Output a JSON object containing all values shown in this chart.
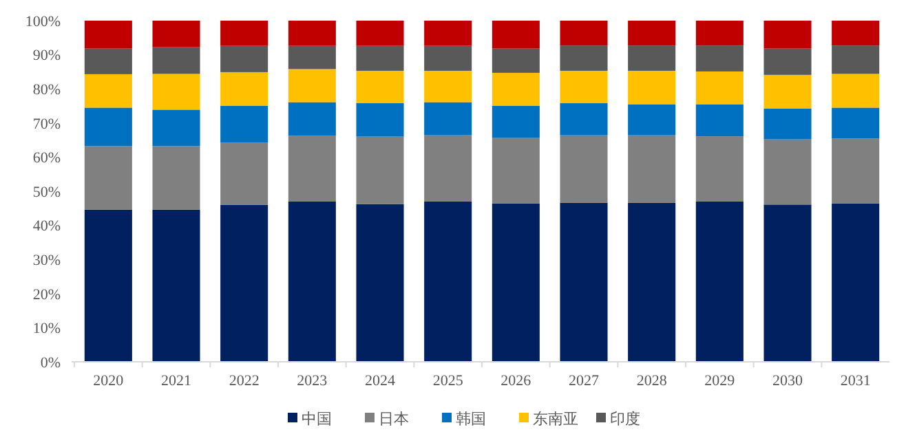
{
  "chart_data": {
    "type": "bar",
    "stacked": true,
    "categories": [
      "2020",
      "2021",
      "2022",
      "2023",
      "2024",
      "2025",
      "2026",
      "2027",
      "2028",
      "2029",
      "2030",
      "2031"
    ],
    "series": [
      {
        "name": "中国",
        "color": "#002060",
        "values": [
          44.6,
          44.6,
          46.0,
          47.0,
          46.2,
          47.0,
          46.4,
          46.6,
          46.6,
          47.0,
          46.1,
          46.4
        ]
      },
      {
        "name": "日本",
        "color": "#808080",
        "values": [
          18.6,
          18.6,
          18.2,
          19.3,
          19.8,
          19.4,
          19.2,
          19.8,
          19.8,
          19.1,
          19.1,
          19.1
        ]
      },
      {
        "name": "韩国",
        "color": "#0070c0",
        "values": [
          11.3,
          10.7,
          10.8,
          9.8,
          9.8,
          9.7,
          9.4,
          9.4,
          9.1,
          9.4,
          9.0,
          9.0
        ]
      },
      {
        "name": "东南亚",
        "color": "#ffc000",
        "values": [
          9.8,
          10.5,
          9.9,
          9.7,
          9.5,
          9.2,
          9.7,
          9.5,
          9.8,
          9.6,
          9.9,
          9.9
        ]
      },
      {
        "name": "印度",
        "color": "#595959",
        "values": [
          7.5,
          7.8,
          7.7,
          6.8,
          7.3,
          7.3,
          7.1,
          7.4,
          7.4,
          7.6,
          7.7,
          8.3
        ]
      },
      {
        "color": "#c00000",
        "values": [
          8.2,
          7.8,
          7.4,
          7.4,
          7.4,
          7.4,
          8.2,
          7.3,
          7.3,
          7.3,
          8.2,
          7.3
        ]
      }
    ],
    "ylim": [
      0,
      100
    ],
    "yticks": [
      {
        "value": 0,
        "label": "0%"
      },
      {
        "value": 10,
        "label": "10%"
      },
      {
        "value": 20,
        "label": "20%"
      },
      {
        "value": 30,
        "label": "30%"
      },
      {
        "value": 40,
        "label": "40%"
      },
      {
        "value": 50,
        "label": "50%"
      },
      {
        "value": 60,
        "label": "60%"
      },
      {
        "value": 70,
        "label": "70%"
      },
      {
        "value": 80,
        "label": "80%"
      },
      {
        "value": 90,
        "label": "90%"
      },
      {
        "value": 100,
        "label": "100%"
      }
    ],
    "legend": "bottom",
    "grid": false
  }
}
